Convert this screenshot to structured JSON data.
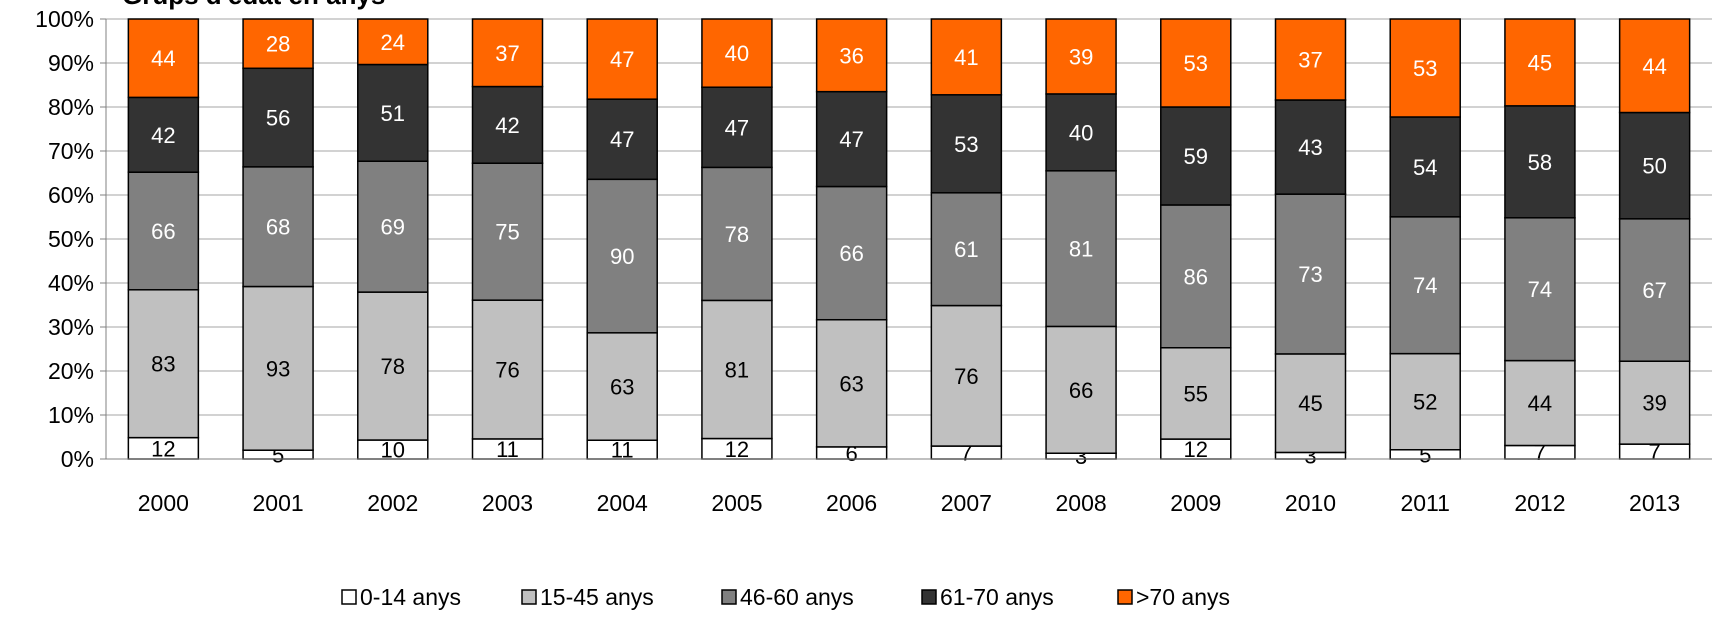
{
  "chart_data": {
    "type": "bar",
    "stacked": true,
    "normalized": true,
    "title": "Grups d'edat en anys",
    "categories": [
      "2000",
      "2001",
      "2002",
      "2003",
      "2004",
      "2005",
      "2006",
      "2007",
      "2008",
      "2009",
      "2010",
      "2011",
      "2012",
      "2013"
    ],
    "series": [
      {
        "name": "0-14 anys",
        "color": "#ffffff",
        "label_color": "#000000",
        "values": [
          12,
          5,
          10,
          11,
          11,
          12,
          6,
          7,
          3,
          12,
          3,
          5,
          7,
          7
        ]
      },
      {
        "name": "15-45 anys",
        "color": "#c0c0c0",
        "label_color": "#000000",
        "values": [
          83,
          93,
          78,
          76,
          63,
          81,
          63,
          76,
          66,
          55,
          45,
          52,
          44,
          39
        ]
      },
      {
        "name": "46-60 anys",
        "color": "#808080",
        "label_color": "#ffffff",
        "values": [
          66,
          68,
          69,
          75,
          90,
          78,
          66,
          61,
          81,
          86,
          73,
          74,
          74,
          67
        ]
      },
      {
        "name": "61-70 anys",
        "color": "#333333",
        "label_color": "#ffffff",
        "values": [
          42,
          56,
          51,
          42,
          47,
          47,
          47,
          53,
          40,
          59,
          43,
          54,
          58,
          50
        ]
      },
      {
        "name": ">70 anys",
        "color": "#ff6600",
        "label_color": "#ffffff",
        "values": [
          44,
          28,
          24,
          37,
          47,
          40,
          36,
          41,
          39,
          53,
          37,
          53,
          45,
          44
        ]
      }
    ],
    "ylim": [
      0,
      100
    ],
    "yticks": [
      "0%",
      "10%",
      "20%",
      "30%",
      "40%",
      "50%",
      "60%",
      "70%",
      "80%",
      "90%",
      "100%"
    ],
    "grid": true,
    "legend": "bottom"
  }
}
